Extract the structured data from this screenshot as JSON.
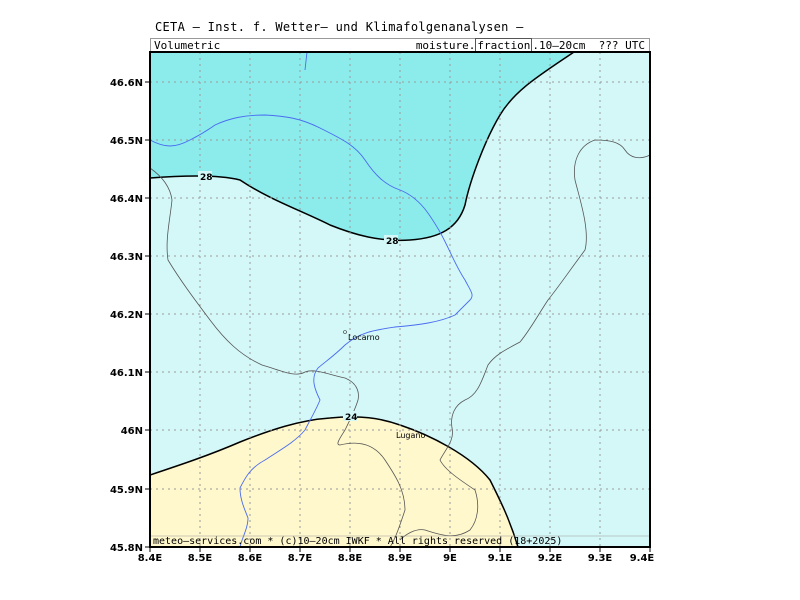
{
  "header": {
    "title": "CETA — Inst. f. Wetter— und Klimafolgenanalysen —",
    "sub_left": "Volumetric",
    "sub_right_pre": "moisture.",
    "sub_right_boxed": "fraction",
    "sub_right_post": ".10—20cm  ??? UTC"
  },
  "map": {
    "lat_labels": [
      "46.6N",
      "46.5N",
      "46.4N",
      "46.3N",
      "46.2N",
      "46.1N",
      "46N",
      "45.9N",
      "45.8N"
    ],
    "lon_labels": [
      "8.4E",
      "8.5E",
      "8.6E",
      "8.7E",
      "8.8E",
      "8.9E",
      "9E",
      "9.1E",
      "9.2E",
      "9.3E",
      "9.4E"
    ],
    "cities": [
      {
        "name": "Locarno"
      },
      {
        "name": "Lugano"
      }
    ],
    "contour_labels": [
      "28",
      "28",
      "24"
    ],
    "colors": {
      "high": "#8cecec",
      "mid": "#d4f8f8",
      "low": "#fff8cc",
      "border": "#555555",
      "river": "#4a6cf0",
      "grid": "#9a9a9a"
    },
    "footer": "meteo—services.com * (c)10—20cm IWKF * All rights reserved (18+2025)"
  }
}
